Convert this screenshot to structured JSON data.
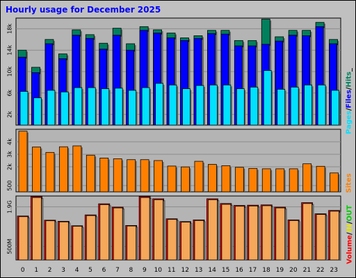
{
  "title": "Hourly usage for December 2025",
  "colors": {
    "hits": "#00805c",
    "files": "#0000ff",
    "pages": "#00e0ff",
    "sites": "#ff8000",
    "volume": "#ff0000",
    "in": "#ffff00",
    "out": "#00cc00",
    "bg": "#c0c0c0",
    "plot_bg": "#b4b4b4"
  },
  "legend_top": {
    "pages": "Pages",
    "files": "Files",
    "hits": "Hits"
  },
  "legend_mid": {
    "sites": "Sites"
  },
  "legend_bottom": {
    "volume": "Volume",
    "in": "IN",
    "out": "OUT"
  },
  "chart_data": [
    {
      "type": "bar",
      "title": "Hourly usage for December 2025",
      "categories": [
        "0",
        "1",
        "2",
        "3",
        "4",
        "5",
        "6",
        "7",
        "8",
        "9",
        "10",
        "11",
        "12",
        "13",
        "14",
        "15",
        "16",
        "17",
        "18",
        "19",
        "20",
        "21",
        "22",
        "23"
      ],
      "ylim": [
        0,
        20000
      ],
      "ytick_labels": [
        "2k",
        "6k",
        "10k",
        "14k",
        "18k"
      ],
      "series": [
        {
          "name": "Hits",
          "values": [
            14000,
            10800,
            16000,
            13300,
            17800,
            16900,
            15300,
            18100,
            15200,
            18400,
            17800,
            17200,
            16300,
            16700,
            17700,
            17700,
            15800,
            15800,
            19800,
            16500,
            17700,
            17700,
            19200,
            16000
          ]
        },
        {
          "name": "Files",
          "values": [
            12700,
            9800,
            15200,
            12400,
            16800,
            16200,
            14200,
            16800,
            14000,
            17700,
            17200,
            16300,
            15800,
            16200,
            17100,
            17000,
            14800,
            14800,
            15100,
            15700,
            16800,
            16700,
            18400,
            15200
          ]
        },
        {
          "name": "Pages",
          "values": [
            6300,
            5100,
            6500,
            6200,
            7000,
            7000,
            6800,
            6900,
            6500,
            7000,
            7800,
            7500,
            6800,
            7400,
            7500,
            7500,
            6800,
            7100,
            10200,
            6700,
            7100,
            7500,
            7500,
            6500
          ]
        }
      ]
    },
    {
      "type": "bar",
      "categories": [
        "0",
        "1",
        "2",
        "3",
        "4",
        "5",
        "6",
        "7",
        "8",
        "9",
        "10",
        "11",
        "12",
        "13",
        "14",
        "15",
        "16",
        "17",
        "18",
        "19",
        "20",
        "21",
        "22",
        "23"
      ],
      "ylim": [
        0,
        5000
      ],
      "ytick_labels": [
        "500",
        "2k",
        "3k",
        "4k"
      ],
      "series": [
        {
          "name": "Sites",
          "values": [
            4850,
            3580,
            3150,
            3600,
            3670,
            2930,
            2700,
            2640,
            2570,
            2570,
            2500,
            2060,
            1990,
            2440,
            2190,
            2090,
            1960,
            1870,
            1840,
            1840,
            1840,
            2240,
            2040,
            1510
          ]
        }
      ]
    },
    {
      "type": "bar",
      "categories": [
        "0",
        "1",
        "2",
        "3",
        "4",
        "5",
        "6",
        "7",
        "8",
        "9",
        "10",
        "11",
        "12",
        "13",
        "14",
        "15",
        "16",
        "17",
        "18",
        "19",
        "20",
        "21",
        "22",
        "23"
      ],
      "ylim": [
        0,
        2.3
      ],
      "ytick_labels": [
        "500M",
        "1.9G"
      ],
      "series": [
        {
          "name": "Volume",
          "values": [
            1.58,
            2.28,
            1.43,
            1.39,
            1.23,
            1.62,
            2.02,
            1.9,
            1.24,
            2.28,
            2.2,
            1.48,
            1.38,
            1.44,
            2.2,
            2.03,
            1.96,
            1.97,
            1.98,
            1.9,
            1.44,
            2.06,
            1.66,
            1.78
          ]
        }
      ]
    }
  ]
}
